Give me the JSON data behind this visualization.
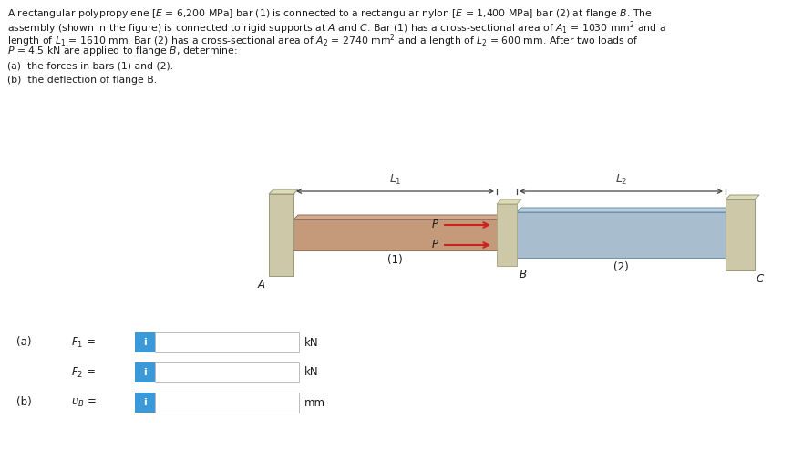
{
  "fig_bg": "#ffffff",
  "bar1_color": "#c49a7a",
  "bar1_top_color": "#d4aa8a",
  "bar2_color": "#a8bece",
  "bar2_top_color": "#b8cedc",
  "flange_color": "#ccc8a8",
  "flange_top_color": "#dddcb8",
  "wall_color": "#ccc8a8",
  "wall_top_color": "#dddcb8",
  "wall_side_color": "#b8b49a",
  "arrow_color": "#cc2222",
  "dim_line_color": "#444444",
  "text_color": "#1a1a1a",
  "input_icon_color": "#3a9ad9",
  "problem_lines": [
    "A rectangular polypropylene [$E$ = 6,200 MPa] bar (1) is connected to a rectangular nylon [$E$ = 1,400 MPa] bar (2) at flange $B$. The",
    "assembly (shown in the figure) is connected to rigid supports at $A$ and $C$. Bar (1) has a cross-sectional area of $A_1$ = 1030 mm$^2$ and a",
    "length of $L_1$ = 1610 mm. Bar (2) has a cross-sectional area of $A_2$ = 2740 mm$^2$ and a length of $L_2$ = 600 mm. After two loads of",
    "$P$ = 4.5 kN are applied to flange $B$, determine:"
  ],
  "line_a": "(a)  the forces in bars (1) and (2).",
  "line_b": "(b)  the deflection of flange B.",
  "label_a": "(a)",
  "label_b": "(b)",
  "label_F1": "$F_1$ =",
  "label_F2": "$F_2$ =",
  "label_uB": "$u_B$ =",
  "unit_kN": "kN",
  "unit_mm": "mm",
  "label_1": "(1)",
  "label_2": "(2)",
  "label_A": "$A$",
  "label_B": "$B$",
  "label_C": "$C$",
  "label_P": "$P$",
  "label_L1": "$L_1$",
  "label_L2": "$L_2$"
}
